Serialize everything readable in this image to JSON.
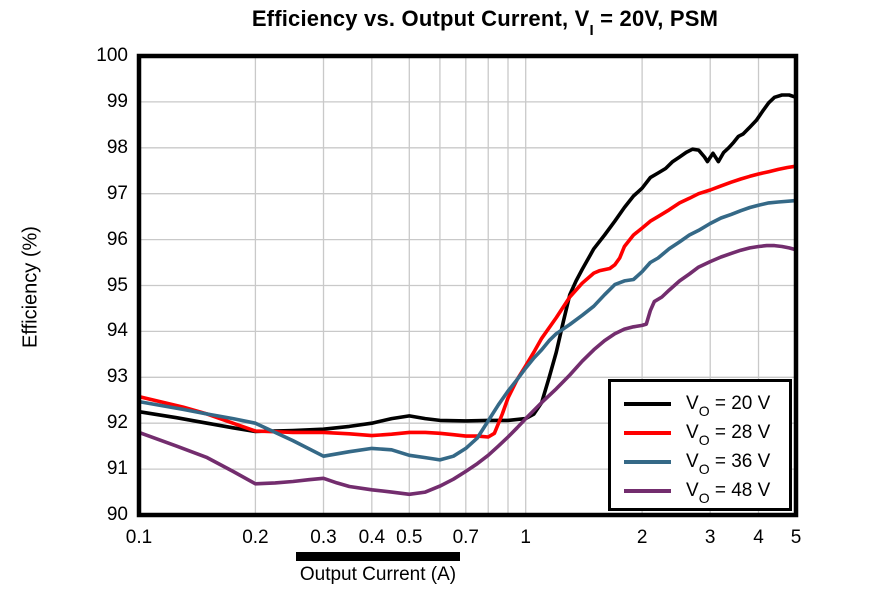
{
  "title": {
    "text_before": "Efficiency vs. Output Current, V",
    "sub_text": "I",
    "text_after": " = 20V, PSM"
  },
  "axes": {
    "x": {
      "label": "Output Current (A)"
    },
    "y": {
      "label": "Efficiency (%)"
    }
  },
  "legend": [
    {
      "prefix": "V",
      "sub": "O",
      "rest": " = 20 V",
      "color": "#000000"
    },
    {
      "prefix": "V",
      "sub": "O",
      "rest": " = 28 V",
      "color": "#ff0000"
    },
    {
      "prefix": "V",
      "sub": "O",
      "rest": " = 36 V",
      "color": "#356987"
    },
    {
      "prefix": "V",
      "sub": "O",
      "rest": " = 48 V",
      "color": "#732d6e"
    }
  ],
  "colors": {
    "frame": "#000000",
    "grid": "#c9c9c9",
    "background": "#ffffff"
  },
  "chart_data": {
    "type": "line",
    "title": "Efficiency vs. Output Current, VI = 20V, PSM",
    "xlabel": "Output Current (A)",
    "ylabel": "Efficiency (%)",
    "x_scale": "log",
    "xlim": [
      0.1,
      5
    ],
    "ylim": [
      90,
      100
    ],
    "x_ticks": [
      0.1,
      0.2,
      0.3,
      0.4,
      0.5,
      0.7,
      1,
      2,
      3,
      4,
      5
    ],
    "x_tick_labels": [
      "0.1",
      "0.2",
      "0.3",
      "0.4",
      "0.5",
      "0.7",
      "1",
      "2",
      "3",
      "4",
      "5"
    ],
    "x_gridlines": [
      0.2,
      0.3,
      0.4,
      0.5,
      0.6,
      0.7,
      0.8,
      0.9,
      1,
      2,
      3,
      4
    ],
    "y_ticks": [
      90,
      91,
      92,
      93,
      94,
      95,
      96,
      97,
      98,
      99,
      100
    ],
    "y_gridlines": [
      91,
      92,
      93,
      94,
      95,
      96,
      97,
      98,
      99
    ],
    "grid": true,
    "legend_position": "lower right",
    "series": [
      {
        "name": "VO = 20 V",
        "color": "#000000",
        "points": [
          [
            0.1,
            92.25
          ],
          [
            0.125,
            92.12
          ],
          [
            0.15,
            92.0
          ],
          [
            0.175,
            91.9
          ],
          [
            0.2,
            91.82
          ],
          [
            0.25,
            91.84
          ],
          [
            0.3,
            91.87
          ],
          [
            0.35,
            91.93
          ],
          [
            0.4,
            92.0
          ],
          [
            0.45,
            92.1
          ],
          [
            0.5,
            92.16
          ],
          [
            0.55,
            92.1
          ],
          [
            0.6,
            92.06
          ],
          [
            0.7,
            92.05
          ],
          [
            0.8,
            92.06
          ],
          [
            0.9,
            92.06
          ],
          [
            1.0,
            92.1
          ],
          [
            1.05,
            92.2
          ],
          [
            1.1,
            92.45
          ],
          [
            1.15,
            93.0
          ],
          [
            1.2,
            93.55
          ],
          [
            1.25,
            94.2
          ],
          [
            1.3,
            94.8
          ],
          [
            1.35,
            95.1
          ],
          [
            1.4,
            95.35
          ],
          [
            1.5,
            95.8
          ],
          [
            1.6,
            96.1
          ],
          [
            1.7,
            96.4
          ],
          [
            1.8,
            96.7
          ],
          [
            1.9,
            96.95
          ],
          [
            2.0,
            97.12
          ],
          [
            2.1,
            97.35
          ],
          [
            2.2,
            97.45
          ],
          [
            2.3,
            97.55
          ],
          [
            2.4,
            97.7
          ],
          [
            2.5,
            97.8
          ],
          [
            2.6,
            97.9
          ],
          [
            2.7,
            97.97
          ],
          [
            2.8,
            97.95
          ],
          [
            2.9,
            97.8
          ],
          [
            2.95,
            97.7
          ],
          [
            3.05,
            97.88
          ],
          [
            3.15,
            97.7
          ],
          [
            3.25,
            97.9
          ],
          [
            3.35,
            98.0
          ],
          [
            3.45,
            98.12
          ],
          [
            3.55,
            98.25
          ],
          [
            3.65,
            98.3
          ],
          [
            3.8,
            98.45
          ],
          [
            3.95,
            98.6
          ],
          [
            4.1,
            98.8
          ],
          [
            4.25,
            98.98
          ],
          [
            4.4,
            99.1
          ],
          [
            4.6,
            99.15
          ],
          [
            4.8,
            99.15
          ],
          [
            5.0,
            99.1
          ]
        ]
      },
      {
        "name": "VO = 28 V",
        "color": "#ff0000",
        "points": [
          [
            0.1,
            92.58
          ],
          [
            0.13,
            92.35
          ],
          [
            0.15,
            92.2
          ],
          [
            0.175,
            92.0
          ],
          [
            0.2,
            91.83
          ],
          [
            0.25,
            91.8
          ],
          [
            0.3,
            91.8
          ],
          [
            0.35,
            91.77
          ],
          [
            0.4,
            91.73
          ],
          [
            0.45,
            91.76
          ],
          [
            0.5,
            91.8
          ],
          [
            0.55,
            91.8
          ],
          [
            0.6,
            91.78
          ],
          [
            0.65,
            91.75
          ],
          [
            0.7,
            91.72
          ],
          [
            0.75,
            91.72
          ],
          [
            0.8,
            91.7
          ],
          [
            0.83,
            91.78
          ],
          [
            0.87,
            92.2
          ],
          [
            0.9,
            92.55
          ],
          [
            0.95,
            92.95
          ],
          [
            1.0,
            93.25
          ],
          [
            1.05,
            93.55
          ],
          [
            1.1,
            93.85
          ],
          [
            1.2,
            94.3
          ],
          [
            1.3,
            94.75
          ],
          [
            1.4,
            95.05
          ],
          [
            1.5,
            95.27
          ],
          [
            1.55,
            95.32
          ],
          [
            1.65,
            95.37
          ],
          [
            1.7,
            95.45
          ],
          [
            1.75,
            95.6
          ],
          [
            1.8,
            95.85
          ],
          [
            1.9,
            96.1
          ],
          [
            2.0,
            96.25
          ],
          [
            2.1,
            96.4
          ],
          [
            2.2,
            96.5
          ],
          [
            2.35,
            96.65
          ],
          [
            2.5,
            96.8
          ],
          [
            2.65,
            96.9
          ],
          [
            2.8,
            97.0
          ],
          [
            3.0,
            97.08
          ],
          [
            3.2,
            97.17
          ],
          [
            3.4,
            97.25
          ],
          [
            3.6,
            97.32
          ],
          [
            3.8,
            97.38
          ],
          [
            4.0,
            97.43
          ],
          [
            4.25,
            97.48
          ],
          [
            4.5,
            97.53
          ],
          [
            4.75,
            97.57
          ],
          [
            5.0,
            97.6
          ]
        ]
      },
      {
        "name": "VO = 36 V",
        "color": "#356987",
        "points": [
          [
            0.1,
            92.47
          ],
          [
            0.13,
            92.3
          ],
          [
            0.15,
            92.2
          ],
          [
            0.175,
            92.1
          ],
          [
            0.2,
            92.0
          ],
          [
            0.25,
            91.62
          ],
          [
            0.3,
            91.28
          ],
          [
            0.35,
            91.38
          ],
          [
            0.4,
            91.45
          ],
          [
            0.45,
            91.42
          ],
          [
            0.5,
            91.3
          ],
          [
            0.55,
            91.25
          ],
          [
            0.6,
            91.2
          ],
          [
            0.65,
            91.28
          ],
          [
            0.7,
            91.45
          ],
          [
            0.75,
            91.68
          ],
          [
            0.8,
            92.05
          ],
          [
            0.85,
            92.4
          ],
          [
            0.9,
            92.7
          ],
          [
            0.95,
            92.95
          ],
          [
            1.0,
            93.2
          ],
          [
            1.05,
            93.42
          ],
          [
            1.1,
            93.6
          ],
          [
            1.15,
            93.8
          ],
          [
            1.2,
            93.95
          ],
          [
            1.3,
            94.15
          ],
          [
            1.4,
            94.35
          ],
          [
            1.5,
            94.55
          ],
          [
            1.6,
            94.8
          ],
          [
            1.7,
            95.02
          ],
          [
            1.8,
            95.1
          ],
          [
            1.9,
            95.13
          ],
          [
            2.0,
            95.3
          ],
          [
            2.1,
            95.5
          ],
          [
            2.2,
            95.6
          ],
          [
            2.35,
            95.8
          ],
          [
            2.5,
            95.95
          ],
          [
            2.65,
            96.1
          ],
          [
            2.8,
            96.2
          ],
          [
            3.0,
            96.35
          ],
          [
            3.2,
            96.47
          ],
          [
            3.4,
            96.55
          ],
          [
            3.6,
            96.63
          ],
          [
            3.8,
            96.7
          ],
          [
            4.0,
            96.75
          ],
          [
            4.25,
            96.8
          ],
          [
            4.5,
            96.82
          ],
          [
            5.0,
            96.85
          ]
        ]
      },
      {
        "name": "VO = 48 V",
        "color": "#732d6e",
        "points": [
          [
            0.1,
            91.8
          ],
          [
            0.125,
            91.5
          ],
          [
            0.15,
            91.25
          ],
          [
            0.175,
            90.95
          ],
          [
            0.2,
            90.68
          ],
          [
            0.225,
            90.7
          ],
          [
            0.25,
            90.73
          ],
          [
            0.275,
            90.77
          ],
          [
            0.3,
            90.8
          ],
          [
            0.325,
            90.7
          ],
          [
            0.35,
            90.62
          ],
          [
            0.4,
            90.55
          ],
          [
            0.45,
            90.5
          ],
          [
            0.5,
            90.45
          ],
          [
            0.55,
            90.5
          ],
          [
            0.6,
            90.63
          ],
          [
            0.65,
            90.78
          ],
          [
            0.7,
            90.95
          ],
          [
            0.75,
            91.12
          ],
          [
            0.8,
            91.3
          ],
          [
            0.85,
            91.5
          ],
          [
            0.9,
            91.7
          ],
          [
            0.95,
            91.9
          ],
          [
            1.0,
            92.1
          ],
          [
            1.1,
            92.45
          ],
          [
            1.2,
            92.75
          ],
          [
            1.3,
            93.05
          ],
          [
            1.4,
            93.35
          ],
          [
            1.5,
            93.6
          ],
          [
            1.6,
            93.8
          ],
          [
            1.7,
            93.95
          ],
          [
            1.8,
            94.05
          ],
          [
            1.9,
            94.1
          ],
          [
            2.0,
            94.13
          ],
          [
            2.05,
            94.16
          ],
          [
            2.1,
            94.45
          ],
          [
            2.15,
            94.65
          ],
          [
            2.25,
            94.75
          ],
          [
            2.35,
            94.9
          ],
          [
            2.5,
            95.1
          ],
          [
            2.65,
            95.25
          ],
          [
            2.8,
            95.4
          ],
          [
            3.0,
            95.52
          ],
          [
            3.2,
            95.62
          ],
          [
            3.4,
            95.7
          ],
          [
            3.6,
            95.77
          ],
          [
            3.8,
            95.82
          ],
          [
            4.0,
            95.85
          ],
          [
            4.2,
            95.87
          ],
          [
            4.4,
            95.87
          ],
          [
            4.6,
            95.85
          ],
          [
            4.8,
            95.82
          ],
          [
            5.0,
            95.78
          ]
        ]
      }
    ]
  }
}
